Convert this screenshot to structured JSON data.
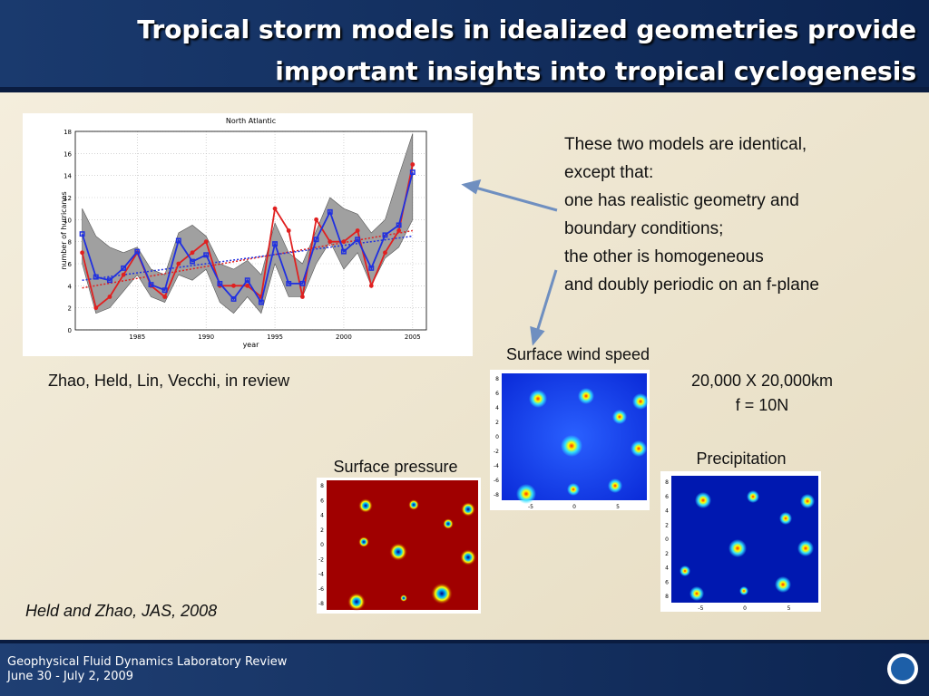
{
  "header": {
    "title_lines": [
      "Tropical storm models in idealized geometries provide",
      "important insights into tropical cyclogenesis"
    ]
  },
  "figure": {
    "chart_data": {
      "type": "line",
      "title": "North Atlantic",
      "x_label": "year",
      "y_label": "number of hurricanes",
      "x": [
        1981,
        1982,
        1983,
        1984,
        1985,
        1986,
        1987,
        1988,
        1989,
        1990,
        1991,
        1992,
        1993,
        1994,
        1995,
        1996,
        1997,
        1998,
        1999,
        2000,
        2001,
        2002,
        2003,
        2004,
        2005
      ],
      "xlim": [
        1980.5,
        2006
      ],
      "xticks": [
        1985,
        1990,
        1995,
        2000,
        2005
      ],
      "ylim": [
        0,
        18
      ],
      "yticks": [
        0,
        2,
        4,
        6,
        8,
        10,
        12,
        14,
        16,
        18
      ],
      "grid": true,
      "envelope": {
        "color": "#a0a0a0",
        "upper": [
          11,
          8.5,
          7.5,
          7,
          7.5,
          5.5,
          5,
          8.8,
          9.5,
          8.5,
          6,
          5.5,
          6.3,
          5,
          9.7,
          7,
          6,
          9,
          12,
          11,
          10.5,
          8.8,
          10,
          14,
          17.8
        ],
        "lower": [
          6,
          1.5,
          2,
          3.5,
          5,
          3,
          2.5,
          5,
          4.5,
          5.5,
          2.5,
          1.5,
          3,
          1.5,
          6,
          3,
          3,
          6,
          8,
          5.5,
          7,
          4,
          6.5,
          7.5,
          10
        ]
      },
      "series": [
        {
          "color": "#e02020",
          "marker": "circle",
          "values": [
            7,
            2,
            3,
            5,
            7,
            4,
            3,
            6,
            7,
            8,
            4,
            4,
            4,
            3,
            11,
            9,
            3,
            10,
            8,
            8,
            9,
            4,
            7,
            9,
            15
          ]
        },
        {
          "color": "#2030e0",
          "marker": "square",
          "values": [
            8.7,
            4.8,
            4.5,
            5.6,
            7.1,
            4.1,
            3.6,
            8.1,
            6.2,
            6.8,
            4.2,
            2.8,
            4.5,
            2.5,
            7.8,
            4.2,
            4.2,
            8.2,
            10.7,
            7.1,
            8.2,
            5.6,
            8.6,
            9.5,
            14.3
          ]
        }
      ],
      "trends": [
        {
          "color": "#e02020",
          "x": [
            1981,
            2005
          ],
          "values": [
            3.8,
            9
          ]
        },
        {
          "color": "#2030e0",
          "x": [
            1981,
            2005
          ],
          "values": [
            4.5,
            8.5
          ]
        }
      ]
    }
  },
  "citation_top": "Zhao, Held, Lin, Vecchi, in review",
  "description_lines": [
    "These two models are identical,",
    "except that:",
    "one has realistic geometry and",
    "boundary conditions;",
    "the other is homogeneous",
    "and doubly periodic on an f-plane"
  ],
  "panels": [
    {
      "label": "Surface wind speed",
      "yticks": [
        8,
        6,
        4,
        2,
        0,
        -2,
        -4,
        -6,
        -8
      ],
      "xticks": [
        -5,
        0,
        5
      ]
    },
    {
      "label": "Surface pressure",
      "yticks": [
        8,
        6,
        4,
        2,
        0,
        -2,
        -4,
        -6,
        -8
      ]
    },
    {
      "label": "Precipitation",
      "yticks": [
        8,
        6,
        4,
        2,
        0,
        2,
        4,
        6,
        8
      ],
      "xticks": [
        -5,
        0,
        5
      ]
    }
  ],
  "domain_lines": [
    "20,000 X 20,000km",
    "f = 10N"
  ],
  "citation_bottom": "Held and Zhao, JAS, 2008",
  "footer": {
    "lines": [
      "Geophysical Fluid Dynamics Laboratory Review",
      "June 30 - July 2, 2009"
    ]
  }
}
